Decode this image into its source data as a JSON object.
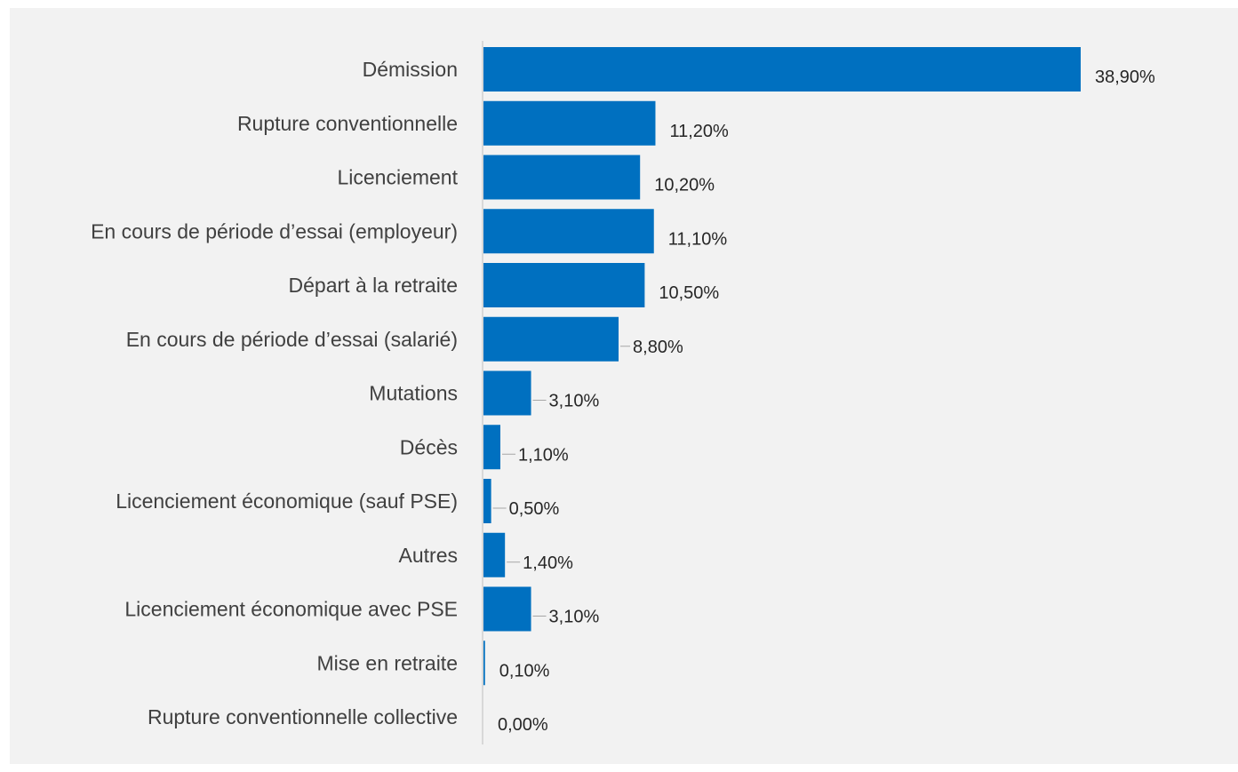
{
  "chart_data": {
    "type": "bar",
    "orientation": "horizontal",
    "title": "",
    "xlabel": "",
    "ylabel": "",
    "categories": [
      "Démission",
      "Rupture conventionnelle",
      "Licenciement",
      "En cours de période d’essai (employeur)",
      "Départ à la retraite",
      "En cours de période d’essai (salarié)",
      "Mutations",
      "Décès",
      "Licenciement économique (sauf PSE)",
      "Autres",
      "Licenciement économique avec PSE",
      "Mise en retraite",
      "Rupture conventionnelle collective"
    ],
    "values": [
      38.9,
      11.2,
      10.2,
      11.1,
      10.5,
      8.8,
      3.1,
      1.1,
      0.5,
      1.4,
      3.1,
      0.1,
      0.0
    ],
    "value_labels": [
      "38,90%",
      "11,20%",
      "10,20%",
      "11,10%",
      "10,50%",
      "8,80%",
      "3,10%",
      "1,10%",
      "0,50%",
      "1,40%",
      "3,10%",
      "0,10%",
      "0,00%"
    ],
    "xlim": [
      0,
      38.9
    ],
    "grid": false,
    "legend": "none",
    "bar_color": "#0070c0",
    "axis_color": "#bfbfbf",
    "leader_color": "#a6a6a6",
    "background_color": "#f2f2f2"
  }
}
